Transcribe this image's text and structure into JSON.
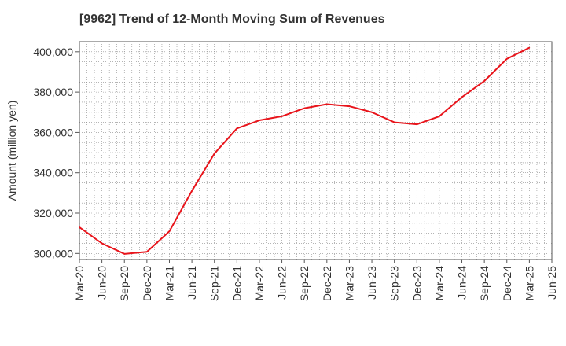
{
  "chart_data": {
    "type": "line",
    "title": "[9962]  Trend of 12-Month Moving Sum of Revenues",
    "xlabel": "",
    "ylabel": "Amount (million yen)",
    "ylim": [
      297000,
      405000
    ],
    "yticks": [
      300000,
      320000,
      340000,
      360000,
      380000,
      400000
    ],
    "ytick_labels": [
      "300,000",
      "320,000",
      "340,000",
      "360,000",
      "380,000",
      "400,000"
    ],
    "x_tick_labels": [
      "Mar-20",
      "Jun-20",
      "Sep-20",
      "Dec-20",
      "Mar-21",
      "Jun-21",
      "Sep-21",
      "Dec-21",
      "Mar-22",
      "Jun-22",
      "Sep-22",
      "Dec-22",
      "Mar-23",
      "Jun-23",
      "Sep-23",
      "Dec-23",
      "Mar-24",
      "Jun-24",
      "Sep-24",
      "Dec-24",
      "Mar-25",
      "Jun-25"
    ],
    "grid": true,
    "series": [
      {
        "color": "#e8141b",
        "x": [
          "Mar-20",
          "Jun-20",
          "Sep-20",
          "Dec-20",
          "Mar-21",
          "Jun-21",
          "Sep-21",
          "Dec-21",
          "Mar-22",
          "Jun-22",
          "Sep-22",
          "Dec-22",
          "Mar-23",
          "Jun-23",
          "Sep-23",
          "Dec-23",
          "Mar-24",
          "Jun-24",
          "Sep-24",
          "Dec-24",
          "Mar-25"
        ],
        "values": [
          313000,
          305000,
          299800,
          300800,
          311000,
          331000,
          349500,
          362000,
          366000,
          368000,
          372000,
          374000,
          373000,
          370000,
          365000,
          364000,
          368000,
          377500,
          385500,
          396500,
          402000
        ]
      }
    ]
  }
}
